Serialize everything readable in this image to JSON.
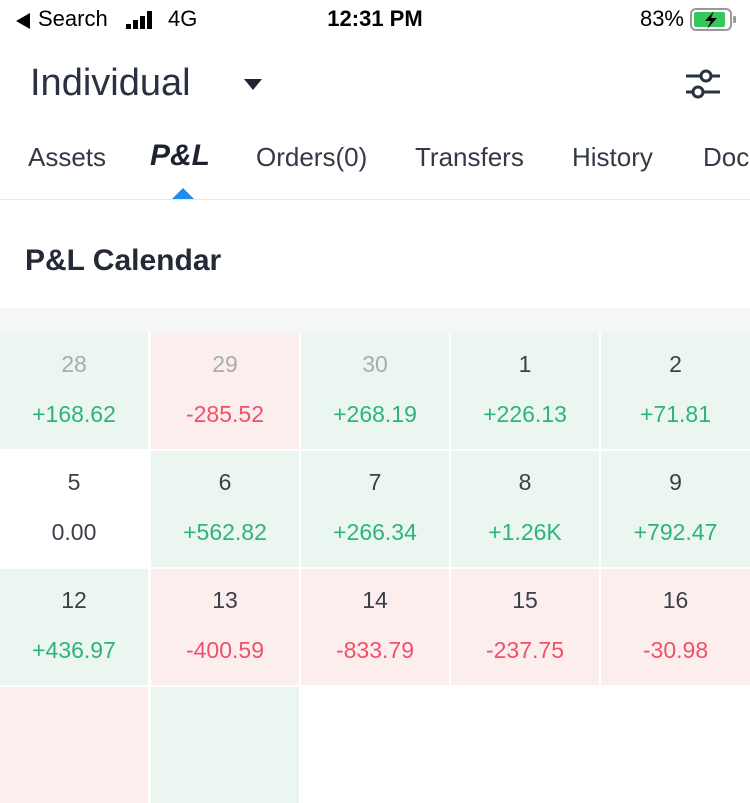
{
  "status_bar": {
    "carrier": "Search",
    "network": "4G",
    "time": "12:31 PM",
    "battery": "83%"
  },
  "header": {
    "account": "Individual"
  },
  "tabs": [
    "Assets",
    "P&L",
    "Orders(0)",
    "Transfers",
    "History",
    "Doc"
  ],
  "active_tab": 1,
  "section": {
    "title": "P&L Calendar"
  },
  "calendar": {
    "cells": [
      {
        "day": "28",
        "value": "+168.62",
        "muted": true
      },
      {
        "day": "29",
        "value": "-285.52",
        "muted": true
      },
      {
        "day": "30",
        "value": "+268.19",
        "muted": true
      },
      {
        "day": "1",
        "value": "+226.13"
      },
      {
        "day": "2",
        "value": "+71.81"
      },
      {
        "day": "5",
        "value": "0.00"
      },
      {
        "day": "6",
        "value": "+562.82"
      },
      {
        "day": "7",
        "value": "+266.34"
      },
      {
        "day": "8",
        "value": "+1.26K"
      },
      {
        "day": "9",
        "value": "+792.47"
      },
      {
        "day": "12",
        "value": "+436.97"
      },
      {
        "day": "13",
        "value": "-400.59"
      },
      {
        "day": "14",
        "value": "-833.79"
      },
      {
        "day": "15",
        "value": "-237.75"
      },
      {
        "day": "16",
        "value": "-30.98"
      }
    ]
  }
}
